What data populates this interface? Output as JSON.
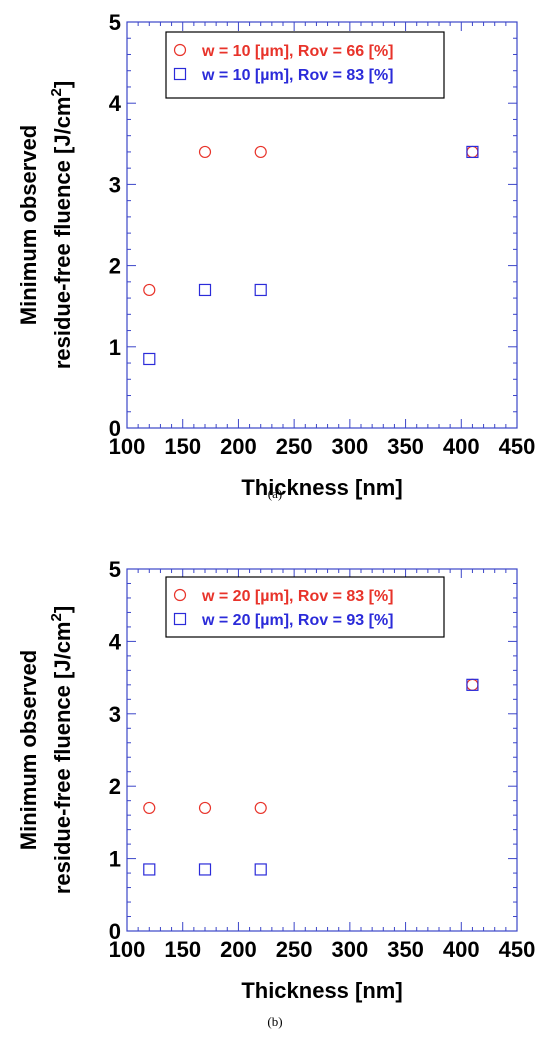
{
  "chart_data": [
    {
      "type": "scatter",
      "caption": "(a)",
      "xlabel": "Thickness [nm]",
      "ylabel_line1": "Minimum observed",
      "ylabel_line2": "residue-free fluence  [J/cm",
      "ylabel_sup": "2",
      "ylabel_close": "]",
      "xlim": [
        100,
        450
      ],
      "ylim": [
        0,
        5
      ],
      "xticks": [
        100,
        150,
        200,
        250,
        300,
        350,
        400,
        450
      ],
      "yticks": [
        0,
        1,
        2,
        3,
        4,
        5
      ],
      "grid": false,
      "legend_position": "top-left",
      "series": [
        {
          "name": "w = 10 [µm],  Rov = 66 [%]",
          "marker": "circle",
          "color": "#e8332a",
          "x": [
            120,
            170,
            220,
            410
          ],
          "y": [
            1.7,
            3.4,
            3.4,
            3.4
          ]
        },
        {
          "name": "w = 10 [µm],  Rov = 83 [%]",
          "marker": "square",
          "color": "#2b2bd9",
          "x": [
            120,
            170,
            220,
            410
          ],
          "y": [
            0.85,
            1.7,
            1.7,
            3.4
          ]
        }
      ]
    },
    {
      "type": "scatter",
      "caption": "(b)",
      "xlabel": "Thickness [nm]",
      "ylabel_line1": "Minimum observed",
      "ylabel_line2": "residue-free fluence  [J/cm",
      "ylabel_sup": "2",
      "ylabel_close": "]",
      "xlim": [
        100,
        450
      ],
      "ylim": [
        0,
        5
      ],
      "xticks": [
        100,
        150,
        200,
        250,
        300,
        350,
        400,
        450
      ],
      "yticks": [
        0,
        1,
        2,
        3,
        4,
        5
      ],
      "grid": false,
      "legend_position": "top-left",
      "series": [
        {
          "name": "w = 20 [µm],  Rov = 83 [%]",
          "marker": "circle",
          "color": "#e8332a",
          "x": [
            120,
            170,
            220,
            410
          ],
          "y": [
            1.7,
            1.7,
            1.7,
            3.4
          ]
        },
        {
          "name": "w = 20 [µm],  Rov = 93 [%]",
          "marker": "square",
          "color": "#2b2bd9",
          "x": [
            120,
            170,
            220,
            410
          ],
          "y": [
            0.85,
            0.85,
            0.85,
            3.4
          ]
        }
      ]
    }
  ]
}
